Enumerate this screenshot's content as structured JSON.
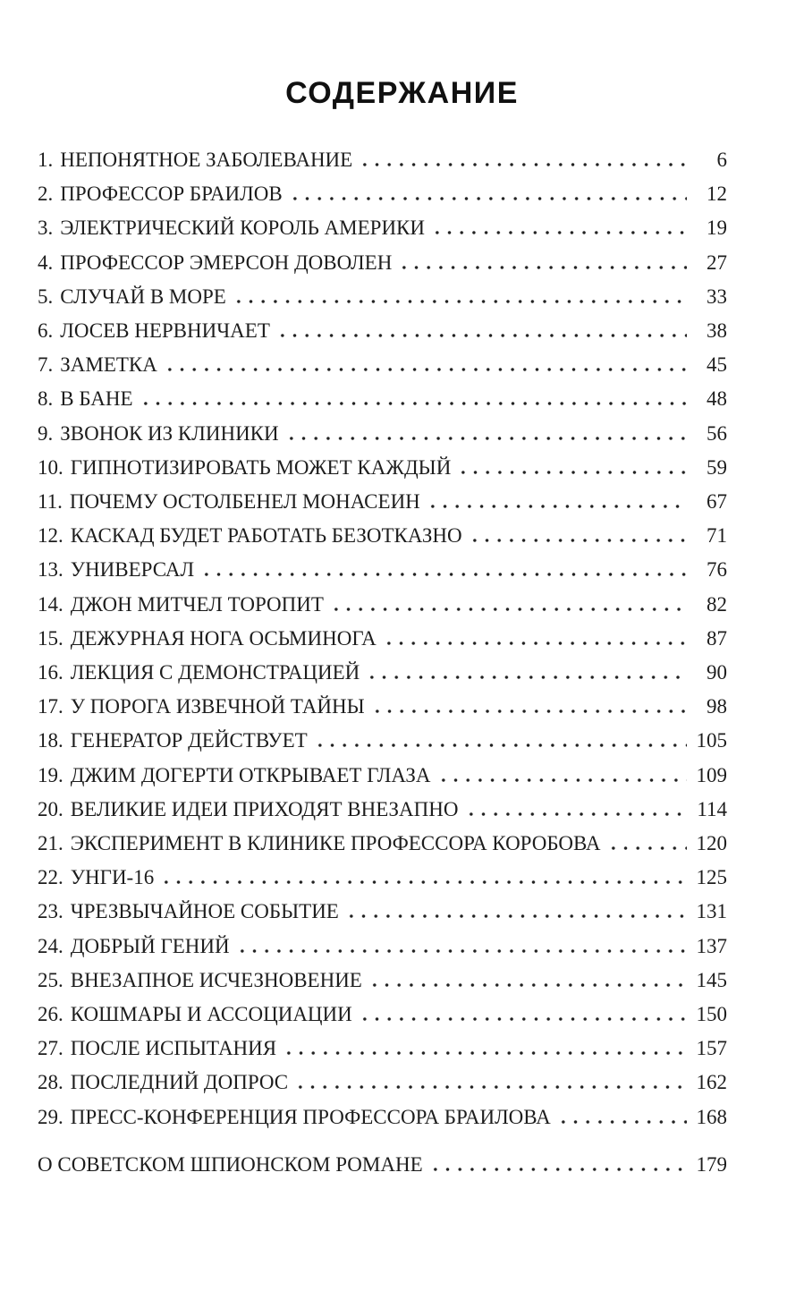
{
  "page": {
    "title": "СОДЕРЖАНИЕ"
  },
  "toc": {
    "entries": [
      {
        "number": "1.",
        "title": "НЕПОНЯТНОЕ ЗАБОЛЕВАНИЕ",
        "page": "6"
      },
      {
        "number": "2.",
        "title": "ПРОФЕССОР БРАИЛОВ",
        "page": "12"
      },
      {
        "number": "3.",
        "title": "ЭЛЕКТРИЧЕСКИЙ КОРОЛЬ АМЕРИКИ",
        "page": "19"
      },
      {
        "number": "4.",
        "title": "ПРОФЕССОР ЭМЕРСОН ДОВОЛЕН",
        "page": "27"
      },
      {
        "number": "5.",
        "title": "СЛУЧАЙ В МОРЕ",
        "page": "33"
      },
      {
        "number": "6.",
        "title": "ЛОСЕВ НЕРВНИЧАЕТ",
        "page": "38"
      },
      {
        "number": "7.",
        "title": "ЗАМЕТКА",
        "page": "45"
      },
      {
        "number": "8.",
        "title": "В БАНЕ",
        "page": "48"
      },
      {
        "number": "9.",
        "title": "ЗВОНОК ИЗ КЛИНИКИ",
        "page": "56"
      },
      {
        "number": "10.",
        "title": "ГИПНОТИЗИРОВАТЬ МОЖЕТ КАЖДЫЙ",
        "page": "59"
      },
      {
        "number": "11.",
        "title": "ПОЧЕМУ ОСТОЛБЕНЕЛ МОНАСЕИН",
        "page": "67"
      },
      {
        "number": "12.",
        "title": "КАСКАД БУДЕТ РАБОТАТЬ БЕЗОТКАЗНО",
        "page": "71"
      },
      {
        "number": "13.",
        "title": "УНИВЕРСАЛ",
        "page": "76"
      },
      {
        "number": "14.",
        "title": "ДЖОН МИТЧЕЛ ТОРОПИТ",
        "page": "82"
      },
      {
        "number": "15.",
        "title": "ДЕЖУРНАЯ НОГА ОСЬМИНОГА",
        "page": "87"
      },
      {
        "number": "16.",
        "title": "ЛЕКЦИЯ С ДЕМОНСТРАЦИЕЙ",
        "page": "90"
      },
      {
        "number": "17.",
        "title": "У ПОРОГА ИЗВЕЧНОЙ ТАЙНЫ",
        "page": "98"
      },
      {
        "number": "18.",
        "title": "ГЕНЕРАТОР ДЕЙСТВУЕТ",
        "page": "105"
      },
      {
        "number": "19.",
        "title": "ДЖИМ ДОГЕРТИ ОТКРЫВАЕТ ГЛАЗА",
        "page": "109"
      },
      {
        "number": "20.",
        "title": "ВЕЛИКИЕ ИДЕИ ПРИХОДЯТ ВНЕЗАПНО",
        "page": "114"
      },
      {
        "number": "21.",
        "title": "ЭКСПЕРИМЕНТ В КЛИНИКЕ ПРОФЕССОРА КОРОБОВА",
        "page": "120"
      },
      {
        "number": "22.",
        "title": "УНГИ-16",
        "page": "125"
      },
      {
        "number": "23.",
        "title": "ЧРЕЗВЫЧАЙНОЕ СОБЫТИЕ",
        "page": "131"
      },
      {
        "number": "24.",
        "title": "ДОБРЫЙ ГЕНИЙ",
        "page": "137"
      },
      {
        "number": "25.",
        "title": "ВНЕЗАПНОЕ ИСЧЕЗНОВЕНИЕ",
        "page": "145"
      },
      {
        "number": "26.",
        "title": "КОШМАРЫ И АССОЦИАЦИИ",
        "page": "150"
      },
      {
        "number": "27.",
        "title": "ПОСЛЕ ИСПЫТАНИЯ",
        "page": "157"
      },
      {
        "number": "28.",
        "title": "ПОСЛЕДНИЙ ДОПРОС",
        "page": "162"
      },
      {
        "number": "29.",
        "title": "ПРЕСС-КОНФЕРЕНЦИЯ ПРОФЕССОРА БРАИЛОВА",
        "page": "168"
      },
      {
        "number": "",
        "title": "О СОВЕТСКОМ ШПИОНСКОМ РОМАНЕ",
        "page": "179"
      }
    ]
  },
  "colors": {
    "background": "#ffffff",
    "text": "#1d1d1d",
    "title_text": "#101010"
  }
}
